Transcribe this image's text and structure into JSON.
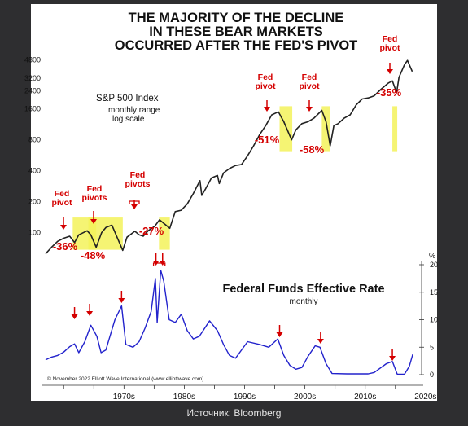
{
  "caption": "Источник: Bloomberg",
  "chart_data": [
    {
      "type": "line",
      "title_lines": [
        "THE MAJORITY OF THE DECLINE",
        "IN THESE BEAR MARKETS",
        "OCCURRED AFTER THE FED'S PIVOT"
      ],
      "series_label": "S&P 500 Index",
      "series_sublabels": [
        "monthly range",
        "log scale"
      ],
      "y_scale": "log",
      "ylim": [
        70,
        6500
      ],
      "xlim": [
        1962,
        2023
      ],
      "y_ticks": [
        100,
        200,
        400,
        800,
        1600,
        2400,
        3200,
        4800
      ],
      "series": [
        {
          "name": "S&P 500 Index",
          "color": "#222222",
          "x": [
            1962,
            1963,
            1964,
            1965,
            1966,
            1966.8,
            1967.5,
            1968.9,
            1969.5,
            1970.4,
            1971.3,
            1972,
            1973,
            1974.8,
            1975.5,
            1976.8,
            1977.5,
            1978.2,
            1979,
            1980.1,
            1980.9,
            1982.6,
            1983.5,
            1984.5,
            1985.5,
            1986.5,
            1987.6,
            1987.9,
            1988.5,
            1989.5,
            1990.5,
            1990.8,
            1991.5,
            1992.5,
            1993.5,
            1994.5,
            1995.5,
            1996.5,
            1997.5,
            1998.5,
            1999.5,
            2000.6,
            2001.5,
            2002.8,
            2003.5,
            2004.5,
            2005.5,
            2006.5,
            2007.8,
            2008.5,
            2009.2,
            2009.8,
            2010.5,
            2011.5,
            2012.5,
            2013.5,
            2014.5,
            2015.5,
            2016.5,
            2017.5,
            2018.8,
            2019.5,
            2020.2,
            2020.6,
            2021.5,
            2022,
            2022.8
          ],
          "values": [
            62,
            72,
            82,
            88,
            92,
            80,
            95,
            104,
            95,
            72,
            100,
            112,
            118,
            67,
            90,
            103,
            95,
            92,
            104,
            115,
            133,
            110,
            160,
            165,
            190,
            240,
            320,
            230,
            265,
            340,
            360,
            300,
            380,
            420,
            450,
            460,
            560,
            700,
            900,
            1100,
            1400,
            1500,
            1200,
            800,
            1000,
            1150,
            1200,
            1300,
            1550,
            1200,
            700,
            1100,
            1150,
            1300,
            1400,
            1750,
            2000,
            2050,
            2150,
            2450,
            2850,
            3000,
            2300,
            3250,
            4300,
            4750,
            3700
          ]
        }
      ],
      "fed_pivot_annotations": [
        {
          "label_lines": [
            "Fed",
            "pivot"
          ],
          "x": 1966.8,
          "decline": "-36%",
          "highlight": [
            1966.5,
            1970.4
          ]
        },
        {
          "label_lines": [
            "Fed",
            "pivots"
          ],
          "x": 1969.3,
          "decline": "-48%",
          "highlight": [
            1969.1,
            1974.8
          ]
        },
        {
          "label_lines": [
            "Fed",
            "pivots"
          ],
          "x": 1974.6,
          "decline": "-27%",
          "highlight": [
            1980.8,
            1982.6
          ]
        },
        {
          "label_lines": [
            "Fed",
            "pivot"
          ],
          "x": 2001,
          "decline": "-51%",
          "highlight": [
            2000.8,
            2002.9
          ]
        },
        {
          "label_lines": [
            "Fed",
            "pivot"
          ],
          "x": 2007.6,
          "decline": "-58%",
          "highlight": [
            2007.8,
            2009.2
          ]
        },
        {
          "label_lines": [
            "Fed",
            "pivot"
          ],
          "x": 2019.6,
          "decline": "-35%",
          "highlight": [
            2019.5,
            2020.2
          ]
        }
      ]
    },
    {
      "type": "line",
      "title": "Federal Funds Effective Rate",
      "subtitle": "monthly",
      "y_unit": "%",
      "ylim": [
        0,
        20
      ],
      "y_ticks": [
        0,
        5,
        10,
        15,
        20
      ],
      "x_ticks": [
        "1970s",
        "1980s",
        "1990s",
        "2000s",
        "2010s",
        "2020s"
      ],
      "x_tick_values": [
        1970,
        1980,
        1990,
        2000,
        2010,
        2020
      ],
      "series": [
        {
          "name": "Federal Funds Effective Rate",
          "color": "#2222cc",
          "x": [
            1962,
            1963,
            1964,
            1965,
            1966,
            1966.8,
            1967.5,
            1968.5,
            1969.5,
            1970.5,
            1971.2,
            1972,
            1973.5,
            1974.6,
            1975.3,
            1976.5,
            1977.5,
            1978.5,
            1979.5,
            1980.2,
            1980.5,
            1981.1,
            1981.6,
            1982.5,
            1983.5,
            1984.5,
            1985.5,
            1986.5,
            1987.5,
            1989.2,
            1990.5,
            1991.5,
            1992.5,
            1993.5,
            1994.5,
            1995.5,
            1997.5,
            1999,
            2000.5,
            2001.5,
            2002.5,
            2003.5,
            2004.5,
            2005.5,
            2006.7,
            2007.5,
            2008.5,
            2009.5,
            2012,
            2015.5,
            2016.5,
            2017.5,
            2018.5,
            2019.5,
            2020.3,
            2021.5,
            2022.3,
            2022.9
          ],
          "values": [
            2.7,
            3.2,
            3.5,
            4.1,
            5.1,
            5.6,
            4.0,
            6.0,
            9.0,
            7.0,
            4.0,
            4.5,
            10.0,
            12.5,
            5.5,
            5.0,
            6.0,
            8.5,
            11.5,
            17.5,
            9.5,
            19.0,
            17.0,
            10.0,
            9.5,
            11.0,
            8.0,
            6.5,
            7.0,
            9.8,
            8.0,
            5.5,
            3.5,
            3.0,
            4.5,
            6.0,
            5.5,
            5.0,
            6.5,
            3.5,
            1.7,
            1.0,
            1.3,
            3.3,
            5.25,
            5.0,
            2.0,
            0.2,
            0.15,
            0.15,
            0.4,
            1.2,
            2.0,
            2.4,
            0.1,
            0.08,
            1.5,
            3.8
          ]
        }
      ],
      "pivot_arrows_x": [
        1966.8,
        1969.3,
        1974.6,
        1980.3,
        1981.4,
        2000.8,
        2007.6,
        2019.5
      ],
      "copyright": "© November 2022 Elliott Wave International (www.elliottwave.com)"
    }
  ],
  "colors": {
    "background": "#2e2e30",
    "panel": "#ffffff",
    "highlight": "#f3f25a",
    "annotation_red": "#d40000",
    "sp500_line": "#222222",
    "rate_line": "#2222cc"
  }
}
